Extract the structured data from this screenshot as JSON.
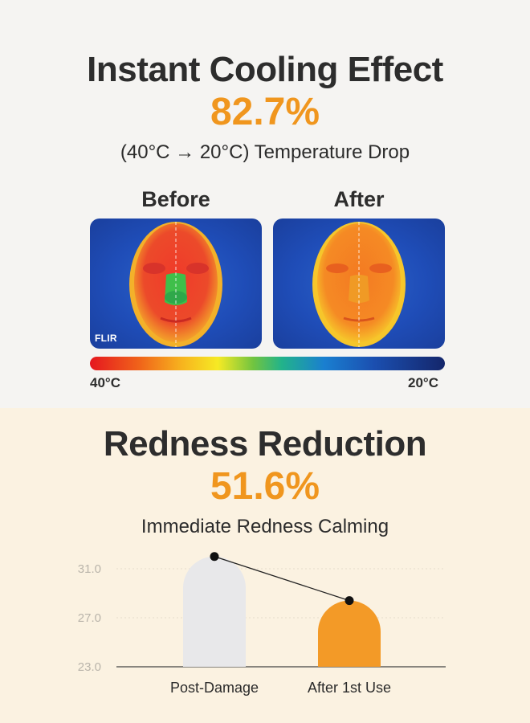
{
  "cooling": {
    "title": "Instant Cooling Effect",
    "percent": "82.7%",
    "subtitle": "(40°C → 20°C) Temperature Drop",
    "before_label": "Before",
    "after_label": "After",
    "watermark": "FLIR",
    "scale_high": "40°C",
    "scale_low": "20°C"
  },
  "redness": {
    "title": "Redness Reduction",
    "percent": "51.6%",
    "subtitle": "Immediate Redness Calming"
  },
  "colors": {
    "accent": "#f0961e",
    "bar_grey": "#e8e8ea",
    "bar_orange": "#f39a27"
  },
  "chart_data": {
    "type": "bar",
    "categories": [
      "Post-Damage",
      "After 1st Use"
    ],
    "values": [
      32.0,
      28.4
    ],
    "yticks": [
      "31.0",
      "27.0",
      "23.0"
    ],
    "ylim": [
      23,
      33
    ],
    "grid": true,
    "trend_line": true
  }
}
